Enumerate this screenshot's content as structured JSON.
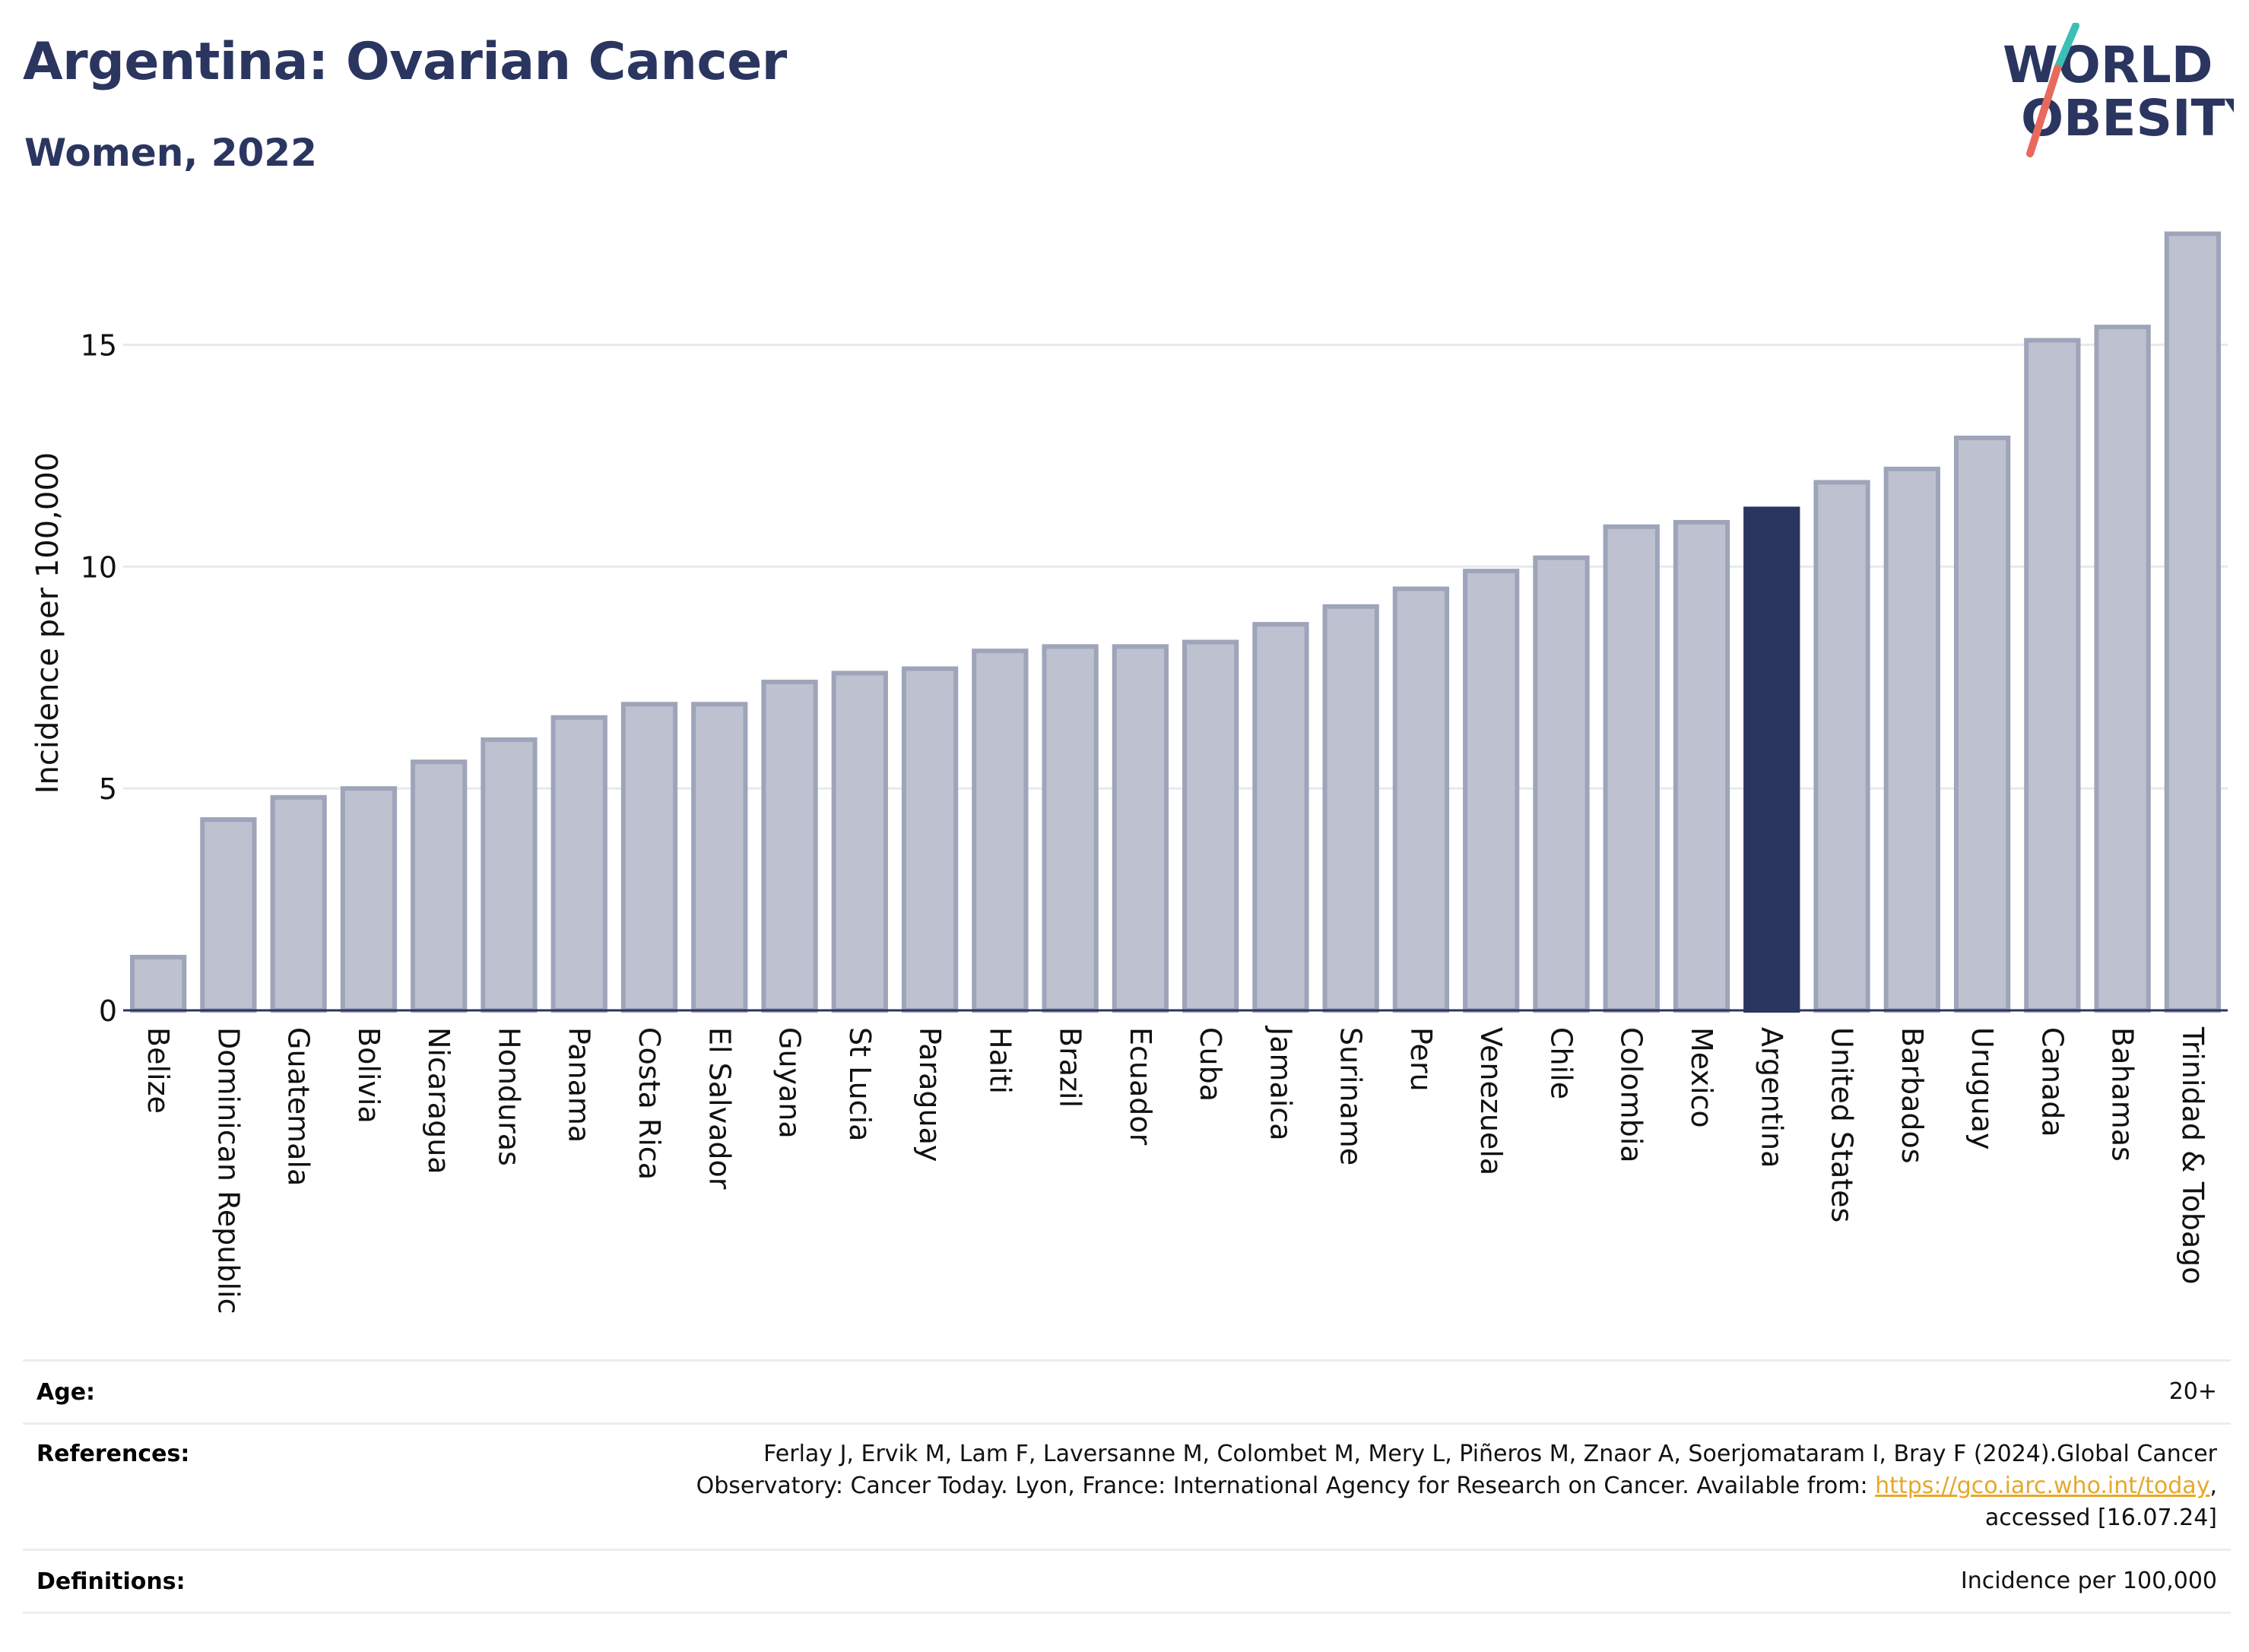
{
  "header": {
    "title": "Argentina: Ovarian Cancer",
    "subtitle": "Women, 2022"
  },
  "logo": {
    "line1": "WORLD",
    "line2": "OBESITY",
    "text_color": "#2a3560",
    "slash_colors": [
      "#3bbfb6",
      "#e86a5c"
    ]
  },
  "chart_data": {
    "type": "bar",
    "title": "Argentina: Ovarian Cancer",
    "subtitle": "Women, 2022",
    "xlabel": "",
    "ylabel": "Incidence per 100,000",
    "ylim": [
      0,
      17.8
    ],
    "yticks": [
      0,
      5,
      10,
      15
    ],
    "grid": true,
    "highlight": "Argentina",
    "colors": {
      "bar": "#bec1cf",
      "bar_border": "#9ea4b9",
      "highlight": "#2a3560",
      "grid": "#e6e9ee",
      "axis": "#2a3560"
    },
    "categories": [
      "Belize",
      "Dominican Republic",
      "Guatemala",
      "Bolivia",
      "Nicaragua",
      "Honduras",
      "Panama",
      "Costa Rica",
      "El Salvador",
      "Guyana",
      "St Lucia",
      "Paraguay",
      "Haiti",
      "Brazil",
      "Ecuador",
      "Cuba",
      "Jamaica",
      "Suriname",
      "Peru",
      "Venezuela",
      "Chile",
      "Colombia",
      "Mexico",
      "Argentina",
      "United States",
      "Barbados",
      "Uruguay",
      "Canada",
      "Bahamas",
      "Trinidad & Tobago"
    ],
    "values": [
      1.2,
      4.3,
      4.8,
      5.0,
      5.6,
      6.1,
      6.6,
      6.9,
      6.9,
      7.4,
      7.6,
      7.7,
      8.1,
      8.2,
      8.2,
      8.3,
      8.7,
      9.1,
      9.5,
      9.9,
      10.2,
      10.9,
      11.0,
      11.3,
      11.9,
      12.2,
      12.9,
      15.1,
      15.4,
      17.5
    ]
  },
  "meta": {
    "age_label": "Age:",
    "age_value": "20+",
    "references_label": "References:",
    "references_line1": "Ferlay J, Ervik M, Lam F, Laversanne M, Colombet M, Mery L, Piñeros M, Znaor A, Soerjomataram I, Bray F (2024).Global Cancer",
    "references_line2_pre": "Observatory: Cancer Today. Lyon, France: International Agency for Research on Cancer. Available from: ",
    "references_link": "https://gco.iarc.who.int/today",
    "references_line2_post": ",",
    "references_line3": "accessed [16.07.24]",
    "definitions_label": "Definitions:",
    "definitions_value": "Incidence per 100,000"
  }
}
